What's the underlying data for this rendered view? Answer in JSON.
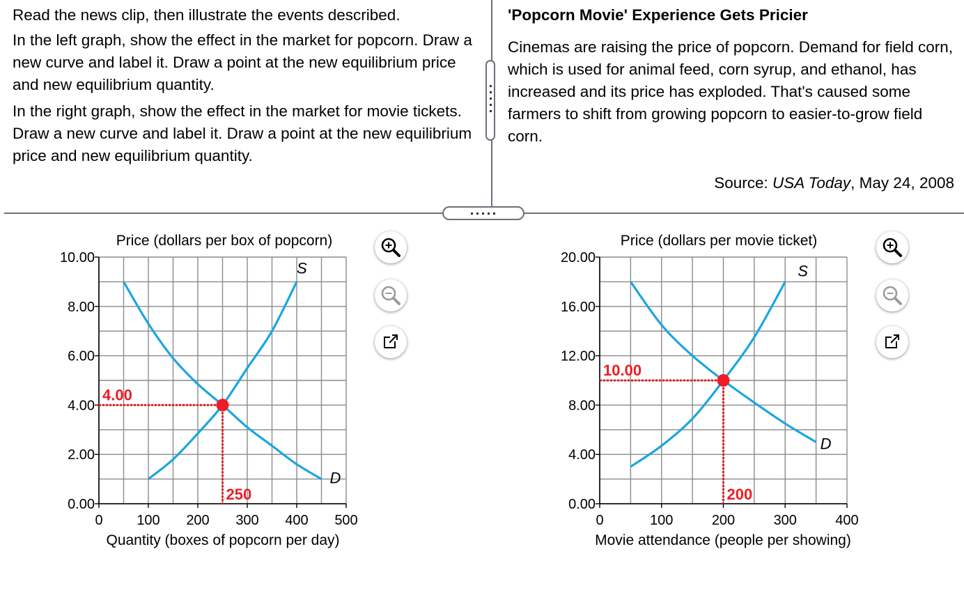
{
  "instructions": {
    "p1": "Read the news clip, then illustrate the events described.",
    "p2": "In the left graph, show the effect in the market for popcorn. Draw a new curve and label it. Draw a point at the new equilibrium price and new equilibrium quantity.",
    "p3": "In the right graph, show the effect in the market for movie tickets. Draw a new curve and label it. Draw a point at the new equilibrium price and new equilibrium quantity."
  },
  "news": {
    "title": "'Popcorn Movie' Experience Gets Pricier",
    "body": "Cinemas are raising the price of popcorn. Demand for field corn, which is used for animal feed, corn syrup, and ethanol, has increased and its price has exploded. That's caused some farmers to shift from growing popcorn to easier-to-grow field corn.",
    "source_label": "Source: ",
    "source_pub": "USA Today",
    "source_date": ", May 24, 2008"
  },
  "icons": {
    "zoom_in": "zoom-in-icon",
    "zoom_out": "zoom-out-icon",
    "expand": "external-window-icon"
  },
  "colors": {
    "curve": "#1ba6e0",
    "equilibrium": "#ee1c24",
    "grid": "#8a8a8a"
  },
  "chart_data": [
    {
      "type": "line",
      "ylabel": "Price (dollars per box of popcorn)",
      "xlabel": "Quantity (boxes of popcorn per day)",
      "xlim": [
        0,
        500
      ],
      "ylim": [
        0,
        10
      ],
      "xticks": [
        "0",
        "100",
        "200",
        "300",
        "400",
        "500"
      ],
      "xtick_values": [
        0,
        100,
        200,
        300,
        400,
        500
      ],
      "yticks": [
        "0.00",
        "2.00",
        "4.00",
        "6.00",
        "8.00",
        "10.00"
      ],
      "ytick_values": [
        0,
        2,
        4,
        6,
        8,
        10
      ],
      "grid": true,
      "series": [
        {
          "name": "S",
          "points": [
            [
              100,
              1.0
            ],
            [
              150,
              1.8
            ],
            [
              200,
              2.85
            ],
            [
              250,
              4.0
            ],
            [
              300,
              5.5
            ],
            [
              350,
              7.0
            ],
            [
              400,
              9.0
            ]
          ]
        },
        {
          "name": "D",
          "points": [
            [
              50,
              9.0
            ],
            [
              100,
              7.3
            ],
            [
              150,
              5.9
            ],
            [
              200,
              4.85
            ],
            [
              250,
              4.0
            ],
            [
              300,
              3.1
            ],
            [
              350,
              2.35
            ],
            [
              400,
              1.6
            ],
            [
              450,
              1.0
            ]
          ]
        }
      ],
      "equilibrium": {
        "x": 250,
        "y": 4.0,
        "x_label": "250",
        "y_label": "4.00"
      }
    },
    {
      "type": "line",
      "ylabel": "Price (dollars per movie ticket)",
      "xlabel": "Movie attendance (people per showing)",
      "xlim": [
        0,
        400
      ],
      "ylim": [
        0,
        20
      ],
      "xticks": [
        "0",
        "100",
        "200",
        "300",
        "400"
      ],
      "xtick_values": [
        0,
        100,
        200,
        300,
        400
      ],
      "yticks": [
        "0.00",
        "4.00",
        "8.00",
        "12.00",
        "16.00",
        "20.00"
      ],
      "ytick_values": [
        0,
        4,
        8,
        12,
        16,
        20
      ],
      "grid": true,
      "series": [
        {
          "name": "S",
          "points": [
            [
              50,
              3.0
            ],
            [
              100,
              4.7
            ],
            [
              150,
              6.9
            ],
            [
              200,
              10.0
            ],
            [
              250,
              13.5
            ],
            [
              300,
              18.0
            ]
          ]
        },
        {
          "name": "D",
          "points": [
            [
              50,
              18.0
            ],
            [
              100,
              14.5
            ],
            [
              150,
              12.0
            ],
            [
              200,
              10.0
            ],
            [
              250,
              8.2
            ],
            [
              300,
              6.5
            ],
            [
              350,
              5.0
            ]
          ]
        }
      ],
      "equilibrium": {
        "x": 200,
        "y": 10.0,
        "x_label": "200",
        "y_label": "10.00"
      }
    }
  ]
}
